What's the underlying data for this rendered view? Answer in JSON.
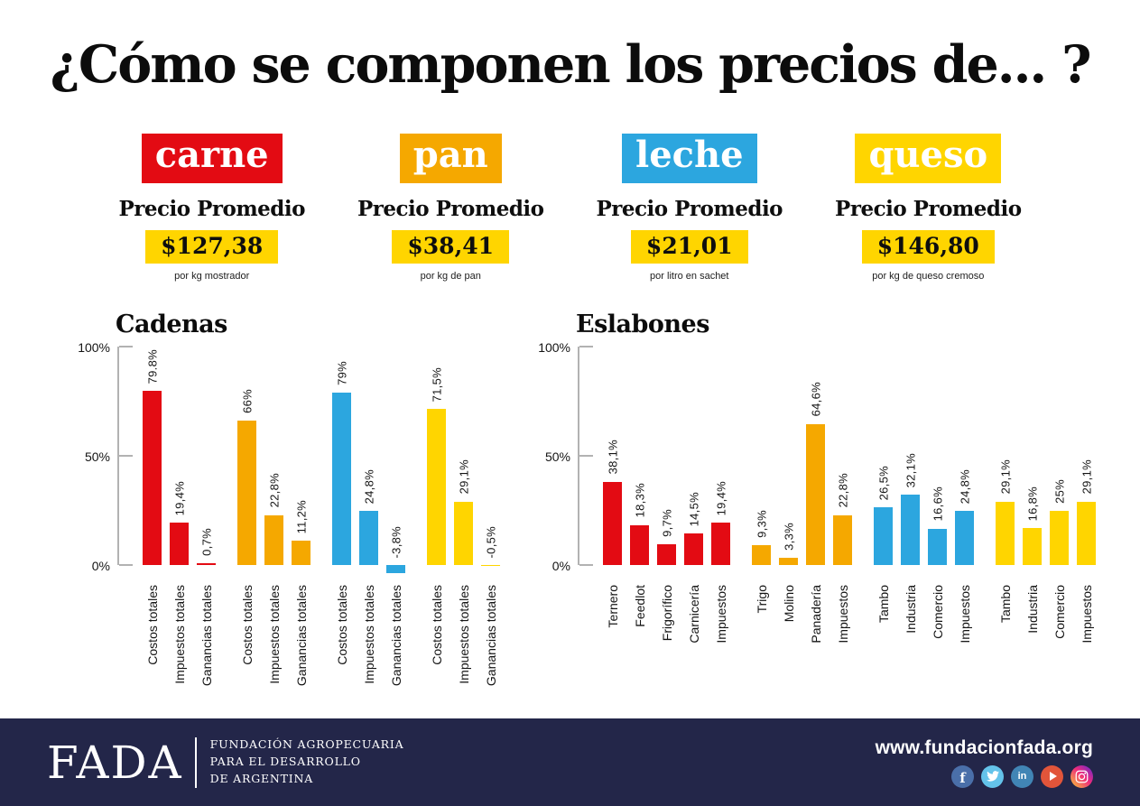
{
  "title": "¿Cómo se componen los precios de... ?",
  "colors": {
    "carne": "#e30b13",
    "pan": "#f5a800",
    "leche": "#2ca6df",
    "queso": "#ffd500",
    "price_box": "#ffd500",
    "footer_bg": "#232649",
    "axis_gray": "#b2b2b2"
  },
  "products": [
    {
      "name": "carne",
      "badge_color": "#e30b13",
      "price_label": "Precio Promedio",
      "price": "$127,38",
      "unit": "por kg mostrador"
    },
    {
      "name": "pan",
      "badge_color": "#f5a800",
      "price_label": "Precio Promedio",
      "price": "$38,41",
      "unit": "por kg de pan"
    },
    {
      "name": "leche",
      "badge_color": "#2ca6df",
      "price_label": "Precio Promedio",
      "price": "$21,01",
      "unit": "por litro en sachet"
    },
    {
      "name": "queso",
      "badge_color": "#ffd500",
      "price_label": "Precio Promedio",
      "price": "$146,80",
      "unit": "por kg de queso cremoso"
    }
  ],
  "chart_data": [
    {
      "type": "bar",
      "title": "Cadenas",
      "ylim": [
        0,
        100
      ],
      "grid": false,
      "yticks": [
        {
          "value": 100,
          "label": "100%"
        },
        {
          "value": 50,
          "label": "50%"
        },
        {
          "value": 0,
          "label": "0%"
        }
      ],
      "groups": [
        {
          "product": "carne",
          "color": "#e30b13",
          "bars": [
            {
              "category": "Costos totales",
              "value": 79.8,
              "label": "79.8%"
            },
            {
              "category": "Impuestos totales",
              "value": 19.4,
              "label": "19,4%"
            },
            {
              "category": "Ganancias totales",
              "value": 0.7,
              "label": "0,7%"
            }
          ]
        },
        {
          "product": "pan",
          "color": "#f5a800",
          "bars": [
            {
              "category": "Costos totales",
              "value": 66,
              "label": "66%"
            },
            {
              "category": "Impuestos totales",
              "value": 22.8,
              "label": "22,8%"
            },
            {
              "category": "Ganancias totales",
              "value": 11.2,
              "label": "11,2%"
            }
          ]
        },
        {
          "product": "leche",
          "color": "#2ca6df",
          "bars": [
            {
              "category": "Costos totales",
              "value": 79,
              "label": "79%"
            },
            {
              "category": "Impuestos totales",
              "value": 24.8,
              "label": "24,8%"
            },
            {
              "category": "Ganancias totales",
              "value": -3.8,
              "label": "-3,8%"
            }
          ]
        },
        {
          "product": "queso",
          "color": "#ffd500",
          "bars": [
            {
              "category": "Costos totales",
              "value": 71.5,
              "label": "71,5%"
            },
            {
              "category": "Impuestos totales",
              "value": 29.1,
              "label": "29,1%"
            },
            {
              "category": "Ganancias totales",
              "value": -0.5,
              "label": "-0,5%"
            }
          ]
        }
      ]
    },
    {
      "type": "bar",
      "title": "Eslabones",
      "ylim": [
        0,
        100
      ],
      "grid": false,
      "yticks": [
        {
          "value": 100,
          "label": "100%"
        },
        {
          "value": 50,
          "label": "50%"
        },
        {
          "value": 0,
          "label": "0%"
        }
      ],
      "groups": [
        {
          "product": "carne",
          "color": "#e30b13",
          "bars": [
            {
              "category": "Ternero",
              "value": 38.1,
              "label": "38,1%"
            },
            {
              "category": "Feedlot",
              "value": 18.3,
              "label": "18,3%"
            },
            {
              "category": "Frigorífico",
              "value": 9.7,
              "label": "9,7%"
            },
            {
              "category": "Carnicería",
              "value": 14.5,
              "label": "14,5%"
            },
            {
              "category": "Impuestos",
              "value": 19.4,
              "label": "19,4%"
            }
          ]
        },
        {
          "product": "pan",
          "color": "#f5a800",
          "bars": [
            {
              "category": "Trigo",
              "value": 9.3,
              "label": "9,3%"
            },
            {
              "category": "Molino",
              "value": 3.3,
              "label": "3,3%"
            },
            {
              "category": "Panadería",
              "value": 64.6,
              "label": "64,6%"
            },
            {
              "category": "Impuestos",
              "value": 22.8,
              "label": "22,8%"
            }
          ]
        },
        {
          "product": "leche",
          "color": "#2ca6df",
          "bars": [
            {
              "category": "Tambo",
              "value": 26.5,
              "label": "26,5%"
            },
            {
              "category": "Industria",
              "value": 32.1,
              "label": "32,1%"
            },
            {
              "category": "Comercio",
              "value": 16.6,
              "label": "16,6%"
            },
            {
              "category": "Impuestos",
              "value": 24.8,
              "label": "24,8%"
            }
          ]
        },
        {
          "product": "queso",
          "color": "#ffd500",
          "bars": [
            {
              "category": "Tambo",
              "value": 29.1,
              "label": "29,1%"
            },
            {
              "category": "Industria",
              "value": 16.8,
              "label": "16,8%"
            },
            {
              "category": "Comercio",
              "value": 25,
              "label": "25%"
            },
            {
              "category": "Impuestos",
              "value": 29.1,
              "label": "29,1%"
            }
          ]
        }
      ]
    }
  ],
  "footer": {
    "logo_text": "FADA",
    "org_lines": [
      "FUNDACIÓN AGROPECUARIA",
      "PARA EL DESARROLLO",
      "DE ARGENTINA"
    ],
    "website": "www.fundacionfada.org",
    "social_icons": [
      {
        "name": "facebook-icon",
        "color": "#4a6fa9"
      },
      {
        "name": "twitter-icon",
        "color": "#64c3ea"
      },
      {
        "name": "linkedin-icon",
        "color": "#4185b5"
      },
      {
        "name": "youtube-icon",
        "color": "#e2553a"
      },
      {
        "name": "instagram-icon",
        "color": "#ee2a7b",
        "gradient": [
          "#f9ce34",
          "#ee2a7b",
          "#6228d7"
        ]
      }
    ]
  }
}
